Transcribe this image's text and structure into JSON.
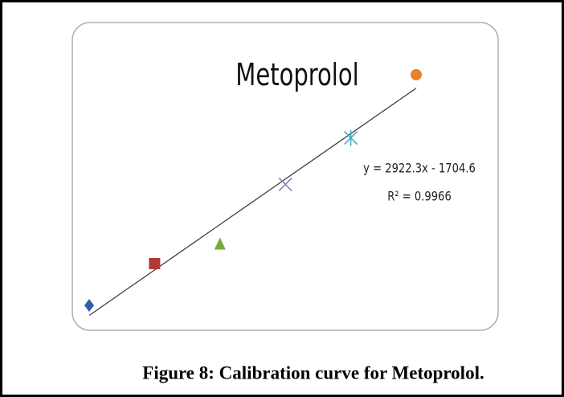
{
  "chart_data": {
    "type": "scatter",
    "title": "Metoprolol",
    "equation": "y = 2922.3x - 1704.6",
    "r_squared": "R² = 0.9966",
    "caption": "Figure 8: Calibration curve for Metoprolol.",
    "x": [
      1,
      2,
      3,
      4,
      5,
      6
    ],
    "values": [
      1115,
      3780,
      4985,
      8830,
      11800,
      15829
    ],
    "colors": [
      "#2e5fa8",
      "#b03a35",
      "#7aa83c",
      "#8a70b0",
      "#46a8c8",
      "#e8822a"
    ],
    "markers": [
      "diamond",
      "square",
      "triangle",
      "x",
      "asterisk",
      "circle"
    ],
    "trendline": true,
    "trendline_color": "#404040"
  }
}
